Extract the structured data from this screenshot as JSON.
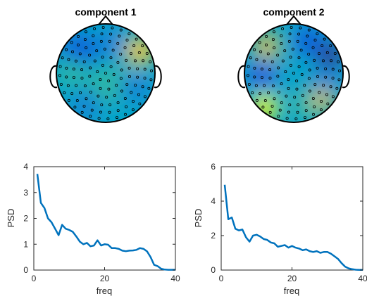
{
  "colors": {
    "line": "#0072BD",
    "axis": "#262626",
    "background": "#ffffff",
    "colormap": [
      "#352a87",
      "#0f5cdd",
      "#1481d6",
      "#06a4ca",
      "#2eb7a4",
      "#87bf77",
      "#d1bb59",
      "#fec832",
      "#f9fb0e"
    ]
  },
  "topoplots": [
    {
      "title": "component 1",
      "blobs": [
        {
          "u": -0.55,
          "v": -0.45,
          "r": 0.35,
          "level": 0.15
        },
        {
          "u": 0.1,
          "v": -0.6,
          "r": 0.3,
          "level": 0.2
        },
        {
          "u": 0.7,
          "v": -0.45,
          "r": 0.3,
          "level": 0.9
        },
        {
          "u": -0.7,
          "v": 0.0,
          "r": 0.3,
          "level": 0.55
        },
        {
          "u": 0.05,
          "v": 0.25,
          "r": 0.4,
          "level": 0.55
        },
        {
          "u": 0.6,
          "v": 0.3,
          "r": 0.3,
          "level": 0.2
        },
        {
          "u": -0.4,
          "v": 0.65,
          "r": 0.3,
          "level": 0.25
        },
        {
          "u": 0.3,
          "v": 0.75,
          "r": 0.25,
          "level": 0.35
        }
      ]
    },
    {
      "title": "component 2",
      "blobs": [
        {
          "u": -0.55,
          "v": -0.55,
          "r": 0.3,
          "level": 0.8
        },
        {
          "u": 0.3,
          "v": -0.65,
          "r": 0.3,
          "level": 0.15
        },
        {
          "u": 0.75,
          "v": -0.35,
          "r": 0.25,
          "level": 0.05
        },
        {
          "u": -0.65,
          "v": 0.05,
          "r": 0.3,
          "level": 0.15
        },
        {
          "u": 0.0,
          "v": 0.1,
          "r": 0.3,
          "level": 0.4
        },
        {
          "u": 0.65,
          "v": 0.15,
          "r": 0.3,
          "level": 0.2
        },
        {
          "u": -0.6,
          "v": 0.7,
          "r": 0.28,
          "level": 1.0
        },
        {
          "u": 0.25,
          "v": 0.65,
          "r": 0.3,
          "level": 0.55
        },
        {
          "u": 0.6,
          "v": 0.55,
          "r": 0.25,
          "level": 0.7
        }
      ]
    }
  ],
  "chart_data": [
    {
      "type": "line",
      "xlabel": "freq",
      "ylabel": "PSD",
      "xlim": [
        0,
        40
      ],
      "ylim": [
        0,
        4
      ],
      "xticks": [
        0,
        20,
        40
      ],
      "yticks": [
        0,
        1,
        2,
        3,
        4
      ],
      "grid": false,
      "x": [
        1,
        2,
        3,
        4,
        5,
        6,
        7,
        8,
        9,
        10,
        11,
        12,
        13,
        14,
        15,
        16,
        17,
        18,
        19,
        20,
        21,
        22,
        23,
        24,
        25,
        26,
        27,
        28,
        29,
        30,
        31,
        32,
        33,
        34,
        35,
        36,
        37,
        38,
        39,
        40
      ],
      "series": [
        {
          "values": [
            3.72,
            2.6,
            2.4,
            2.0,
            1.85,
            1.6,
            1.35,
            1.75,
            1.6,
            1.55,
            1.48,
            1.3,
            1.1,
            1.0,
            1.05,
            0.92,
            0.95,
            1.15,
            0.95,
            1.0,
            0.98,
            0.85,
            0.85,
            0.82,
            0.75,
            0.73,
            0.75,
            0.76,
            0.78,
            0.85,
            0.82,
            0.72,
            0.5,
            0.2,
            0.15,
            0.05,
            0.02,
            0.01,
            0.01,
            0.01
          ]
        }
      ]
    },
    {
      "type": "line",
      "xlabel": "freq",
      "ylabel": "PSD",
      "xlim": [
        0,
        40
      ],
      "ylim": [
        0,
        6
      ],
      "xticks": [
        0,
        20,
        40
      ],
      "yticks": [
        0,
        2,
        4,
        6
      ],
      "grid": false,
      "x": [
        1,
        2,
        3,
        4,
        5,
        6,
        7,
        8,
        9,
        10,
        11,
        12,
        13,
        14,
        15,
        16,
        17,
        18,
        19,
        20,
        21,
        22,
        23,
        24,
        25,
        26,
        27,
        28,
        29,
        30,
        31,
        32,
        33,
        34,
        35,
        36,
        37,
        38,
        39,
        40
      ],
      "series": [
        {
          "values": [
            4.95,
            2.95,
            3.05,
            2.4,
            2.3,
            2.35,
            1.9,
            1.65,
            2.0,
            2.05,
            1.95,
            1.8,
            1.75,
            1.6,
            1.55,
            1.35,
            1.4,
            1.45,
            1.3,
            1.4,
            1.3,
            1.25,
            1.15,
            1.2,
            1.1,
            1.05,
            1.1,
            1.0,
            1.05,
            1.05,
            0.95,
            0.8,
            0.65,
            0.4,
            0.2,
            0.1,
            0.05,
            0.02,
            0.01,
            0.01
          ]
        }
      ]
    }
  ]
}
